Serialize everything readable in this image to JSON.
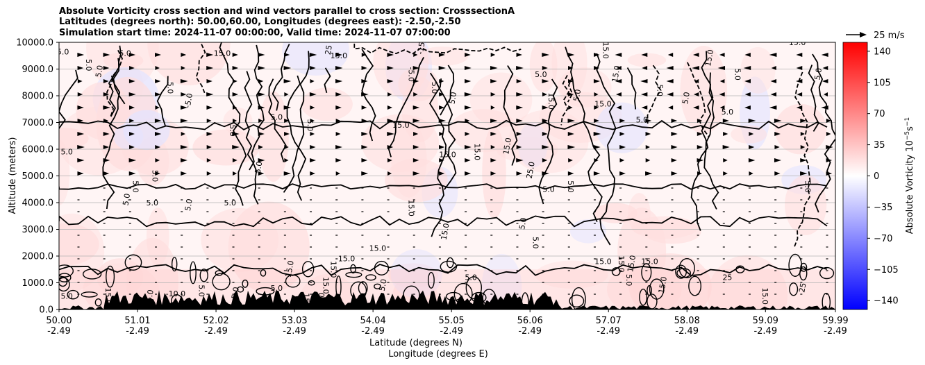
{
  "title": {
    "line1": "Absolute Vorticity cross section and wind vectors parallel to cross section: CrosssectionA",
    "line2": "Latitudes (degrees north): 50.00,60.00, Longitudes (degrees east): -2.50,-2.50",
    "line3": "Simulation start time: 2024-11-07 00:00:00, Valid time: 2024-11-07 07:00:00"
  },
  "chart_data": {
    "type": "heatmap",
    "description_fields": "filled vorticity contours with black contour lines and wind vector arrows",
    "xlabel_line1": "Latitude (degrees N)",
    "xlabel_line2": "Longitude (degrees E)",
    "ylabel": "Altitude (meters)",
    "x_ticks": [
      {
        "lat": "50.00",
        "lon": "-2.49"
      },
      {
        "lat": "51.01",
        "lon": "-2.49"
      },
      {
        "lat": "52.02",
        "lon": "-2.49"
      },
      {
        "lat": "53.03",
        "lon": "-2.49"
      },
      {
        "lat": "54.04",
        "lon": "-2.49"
      },
      {
        "lat": "55.05",
        "lon": "-2.49"
      },
      {
        "lat": "56.06",
        "lon": "-2.49"
      },
      {
        "lat": "57.07",
        "lon": "-2.49"
      },
      {
        "lat": "58.08",
        "lon": "-2.49"
      },
      {
        "lat": "59.09",
        "lon": "-2.49"
      },
      {
        "lat": "59.99",
        "lon": "-2.49"
      }
    ],
    "xlim": [
      50.0,
      59.99
    ],
    "y_ticks": [
      "0.0",
      "1000.0",
      "2000.0",
      "3000.0",
      "4000.0",
      "5000.0",
      "6000.0",
      "7000.0",
      "8000.0",
      "9000.0",
      "10000.0"
    ],
    "ylim": [
      0,
      10000
    ],
    "grid": "horizontal",
    "colorbar": {
      "label": "Absolute Vorticity 10$^{-5}$s$^{-1}$",
      "label_main": "Absolute Vorticity 10",
      "label_exp": "−5",
      "label_unit": "s",
      "label_unit_exp": "−1",
      "ticks": [
        "140",
        "105",
        "70",
        "35",
        "0",
        "−35",
        "−70",
        "−105",
        "−140"
      ],
      "range": [
        -150,
        150
      ],
      "colormap": "bwr",
      "low_color": "#0000ff",
      "mid_color": "#ffffff",
      "high_color": "#ff0000"
    },
    "quiver_key": {
      "label": "25 m/s"
    },
    "contour_labels": [
      {
        "x": 50.05,
        "y": 9550,
        "text": "5.0"
      },
      {
        "x": 50.35,
        "y": 9150,
        "text": "5.0"
      },
      {
        "x": 50.55,
        "y": 8900,
        "text": "5.0"
      },
      {
        "x": 50.85,
        "y": 9500,
        "text": "5.0"
      },
      {
        "x": 51.4,
        "y": 8300,
        "text": "5.0"
      },
      {
        "x": 51.7,
        "y": 7800,
        "text": "-5.0"
      },
      {
        "x": 52.1,
        "y": 9500,
        "text": "15.0"
      },
      {
        "x": 52.2,
        "y": 6700,
        "text": "5.0"
      },
      {
        "x": 52.6,
        "y": 5300,
        "text": "5.0"
      },
      {
        "x": 52.8,
        "y": 7100,
        "text": "5.0"
      },
      {
        "x": 53.2,
        "y": 6900,
        "text": "5.0"
      },
      {
        "x": 53.5,
        "y": 9700,
        "text": "25"
      },
      {
        "x": 53.6,
        "y": 9400,
        "text": "15.0"
      },
      {
        "x": 54.5,
        "y": 8800,
        "text": "-5.0"
      },
      {
        "x": 54.7,
        "y": 9900,
        "text": "-15.0"
      },
      {
        "x": 54.4,
        "y": 6800,
        "text": "15.0"
      },
      {
        "x": 54.8,
        "y": 8300,
        "text": "5.0"
      },
      {
        "x": 55.1,
        "y": 7900,
        "text": "5.0"
      },
      {
        "x": 55.0,
        "y": 5700,
        "text": "15.0"
      },
      {
        "x": 55.35,
        "y": 5900,
        "text": "15.0"
      },
      {
        "x": 55.8,
        "y": 6100,
        "text": "15.0"
      },
      {
        "x": 56.2,
        "y": 8700,
        "text": "5.0"
      },
      {
        "x": 56.3,
        "y": 7800,
        "text": "15.0"
      },
      {
        "x": 56.1,
        "y": 5200,
        "text": "25.0"
      },
      {
        "x": 56.3,
        "y": 4400,
        "text": "5.0"
      },
      {
        "x": 56.55,
        "y": 4600,
        "text": "5.0"
      },
      {
        "x": 56.7,
        "y": 8000,
        "text": "5.0"
      },
      {
        "x": 57.0,
        "y": 7600,
        "text": "15.0"
      },
      {
        "x": 57.0,
        "y": 9700,
        "text": "15.0"
      },
      {
        "x": 57.2,
        "y": 8800,
        "text": "15.0"
      },
      {
        "x": 57.5,
        "y": 7000,
        "text": "5.0"
      },
      {
        "x": 57.7,
        "y": 8200,
        "text": "5.0"
      },
      {
        "x": 58.1,
        "y": 7900,
        "text": "5.0"
      },
      {
        "x": 58.6,
        "y": 7300,
        "text": "5.0"
      },
      {
        "x": 58.7,
        "y": 8800,
        "text": "5.0"
      },
      {
        "x": 58.4,
        "y": 9400,
        "text": "15.0"
      },
      {
        "x": 59.5,
        "y": 9900,
        "text": "15.0"
      },
      {
        "x": 59.6,
        "y": 4600,
        "text": "5.0"
      },
      {
        "x": 59.8,
        "y": 8800,
        "text": "5.0"
      },
      {
        "x": 50.1,
        "y": 5800,
        "text": "5.0"
      },
      {
        "x": 50.95,
        "y": 4600,
        "text": "5.0"
      },
      {
        "x": 50.9,
        "y": 4100,
        "text": "5.0"
      },
      {
        "x": 51.2,
        "y": 3900,
        "text": "5.0"
      },
      {
        "x": 51.2,
        "y": 5000,
        "text": "5.0"
      },
      {
        "x": 51.7,
        "y": 3900,
        "text": "5.0"
      },
      {
        "x": 52.2,
        "y": 3900,
        "text": "5.0"
      },
      {
        "x": 54.5,
        "y": 3800,
        "text": "15.0"
      },
      {
        "x": 55.0,
        "y": 2900,
        "text": "15.0"
      },
      {
        "x": 54.1,
        "y": 2200,
        "text": "15.0"
      },
      {
        "x": 53.5,
        "y": 1500,
        "text": "15.0"
      },
      {
        "x": 53.0,
        "y": 1500,
        "text": "15.0"
      },
      {
        "x": 53.7,
        "y": 1800,
        "text": "15.0"
      },
      {
        "x": 53.4,
        "y": 900,
        "text": "15.0"
      },
      {
        "x": 54.2,
        "y": 900,
        "text": "5.0"
      },
      {
        "x": 55.3,
        "y": 1100,
        "text": "5.0"
      },
      {
        "x": 56.1,
        "y": 2500,
        "text": "5.0"
      },
      {
        "x": 56.0,
        "y": 3200,
        "text": "5.0"
      },
      {
        "x": 57.0,
        "y": 1700,
        "text": "15.0"
      },
      {
        "x": 57.2,
        "y": 1700,
        "text": "15.0"
      },
      {
        "x": 57.4,
        "y": 1700,
        "text": "15.0"
      },
      {
        "x": 57.6,
        "y": 1700,
        "text": "15.0"
      },
      {
        "x": 57.3,
        "y": 1100,
        "text": "5.0"
      },
      {
        "x": 57.8,
        "y": 900,
        "text": "15.0"
      },
      {
        "x": 58.6,
        "y": 1100,
        "text": "25"
      },
      {
        "x": 59.05,
        "y": 500,
        "text": "15.0"
      },
      {
        "x": 59.6,
        "y": 800,
        "text": "25"
      },
      {
        "x": 50.1,
        "y": 400,
        "text": "5.0"
      },
      {
        "x": 50.6,
        "y": 500,
        "text": "15.0"
      },
      {
        "x": 51.2,
        "y": 500,
        "text": "5.0"
      },
      {
        "x": 51.5,
        "y": 500,
        "text": "-10.0"
      },
      {
        "x": 51.8,
        "y": 700,
        "text": "5.0"
      },
      {
        "x": 52.3,
        "y": 600,
        "text": "5.0"
      },
      {
        "x": 52.8,
        "y": 700,
        "text": "5.0"
      },
      {
        "x": 53.15,
        "y": 300,
        "text": "15.0"
      },
      {
        "x": 53.4,
        "y": 300,
        "text": "15.0"
      }
    ]
  }
}
